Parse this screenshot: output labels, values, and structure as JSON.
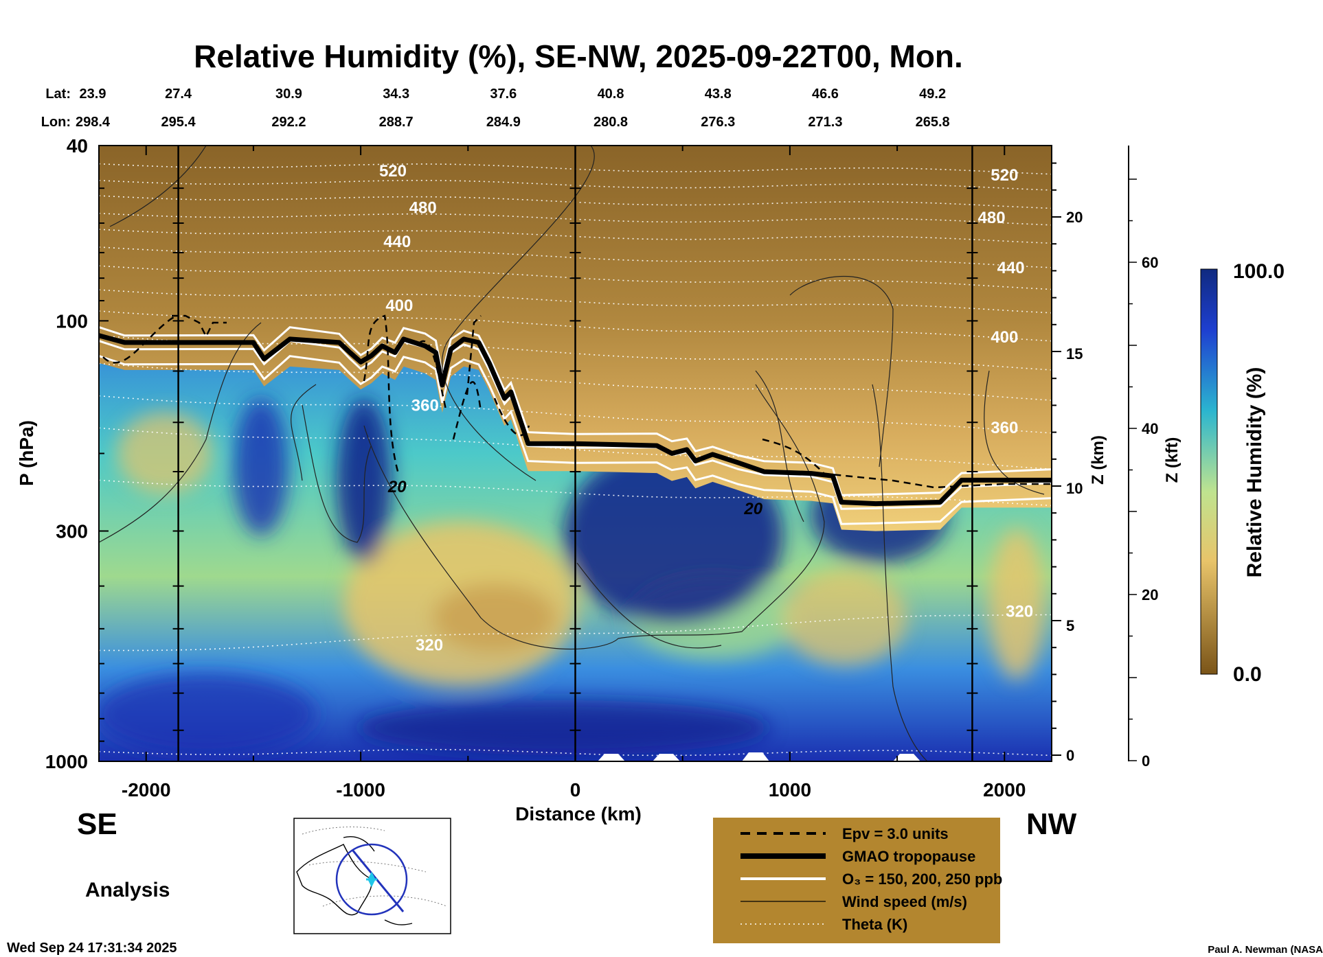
{
  "title": "Relative Humidity (%), SE-NW, 2025-09-22T00, Mon.",
  "lat": {
    "label": "Lat:",
    "values": [
      "23.9",
      "27.4",
      "30.9",
      "34.3",
      "37.6",
      "40.8",
      "43.8",
      "46.6",
      "49.2"
    ]
  },
  "lon": {
    "label": "Lon:",
    "values": [
      "298.4",
      "295.4",
      "292.2",
      "288.7",
      "284.9",
      "280.8",
      "276.3",
      "271.3",
      "265.8"
    ]
  },
  "chart_data": {
    "type": "heatmap",
    "title": "Relative Humidity (%), SE-NW, 2025-09-22T00, Mon.",
    "xlabel": "Distance (km)",
    "ylabel": "P (hPa)",
    "xlim": [
      -2220,
      2220
    ],
    "ylim": [
      1000,
      40
    ],
    "x_ticks": [
      -2000,
      -1000,
      0,
      1000,
      2000
    ],
    "y_ticks": [
      40,
      100,
      300,
      1000
    ],
    "right_axis_1": {
      "label": "Z (km)",
      "ticks": [
        0,
        5,
        10,
        15,
        20
      ]
    },
    "right_axis_2": {
      "label": "Z (kft)",
      "ticks": [
        0,
        20,
        40,
        60
      ]
    },
    "colorbar": {
      "label": "Relative Humidity (%)",
      "min": 0.0,
      "max": 100.0,
      "min_label": "0.0",
      "max_label": "100.0"
    },
    "theta_contours": [
      {
        "label": "520",
        "x": -850,
        "p": 47
      },
      {
        "label": "480",
        "x": -710,
        "p": 57
      },
      {
        "label": "440",
        "x": -830,
        "p": 68
      },
      {
        "label": "400",
        "x": -820,
        "p": 95
      },
      {
        "label": "360",
        "x": -700,
        "p": 160
      },
      {
        "label": "320",
        "x": -680,
        "p": 560
      },
      {
        "label": "520",
        "x": 2000,
        "p": 48
      },
      {
        "label": "480",
        "x": 1940,
        "p": 60
      },
      {
        "label": "440",
        "x": 2030,
        "p": 78
      },
      {
        "label": "400",
        "x": 2000,
        "p": 112
      },
      {
        "label": "360",
        "x": 2000,
        "p": 180
      },
      {
        "label": "320",
        "x": 2070,
        "p": 470
      }
    ],
    "wind_contours": [
      {
        "label": "20",
        "x": -830,
        "p": 245
      },
      {
        "label": "20",
        "x": 830,
        "p": 275
      }
    ],
    "tropopause": [
      [
        -2220,
        108
      ],
      [
        -2100,
        112
      ],
      [
        -1500,
        112
      ],
      [
        -1450,
        122
      ],
      [
        -1330,
        110
      ],
      [
        -1100,
        112
      ],
      [
        -1050,
        118
      ],
      [
        -1000,
        124
      ],
      [
        -950,
        120
      ],
      [
        -900,
        114
      ],
      [
        -840,
        118
      ],
      [
        -800,
        110
      ],
      [
        -700,
        114
      ],
      [
        -650,
        118
      ],
      [
        -620,
        140
      ],
      [
        -580,
        116
      ],
      [
        -520,
        110
      ],
      [
        -450,
        112
      ],
      [
        -400,
        125
      ],
      [
        -330,
        150
      ],
      [
        -300,
        145
      ],
      [
        -220,
        190
      ],
      [
        0,
        190
      ],
      [
        380,
        192
      ],
      [
        450,
        200
      ],
      [
        520,
        196
      ],
      [
        560,
        208
      ],
      [
        640,
        201
      ],
      [
        760,
        210
      ],
      [
        880,
        220
      ],
      [
        1100,
        222
      ],
      [
        1200,
        225
      ],
      [
        1240,
        258
      ],
      [
        1400,
        260
      ],
      [
        1700,
        258
      ],
      [
        1800,
        230
      ],
      [
        2220,
        230
      ]
    ],
    "legend": {
      "items": [
        {
          "style": "dashed",
          "label": "Epv = 3.0 units"
        },
        {
          "style": "thick",
          "label": "GMAO tropopause"
        },
        {
          "style": "white",
          "label": "O₃ = 150, 200, 250 ppb"
        },
        {
          "style": "thin",
          "label": "Wind speed (m/s)"
        },
        {
          "style": "dotted",
          "label": "Theta (K)"
        }
      ]
    }
  },
  "labels": {
    "se": "SE",
    "nw": "NW",
    "analysis": "Analysis",
    "timestamp": "Wed Sep 24 17:31:34 2025",
    "credit": "Paul A. Newman (NASA"
  },
  "colors": {
    "rh_low": "#6e4a14",
    "rh_mid": "#e8c46a",
    "rh_green": "#bfe38f",
    "rh_cyan": "#2fc7c9",
    "rh_blue": "#1f4fd6",
    "rh_high": "#12208a",
    "legend_bg": "#b3862f"
  }
}
